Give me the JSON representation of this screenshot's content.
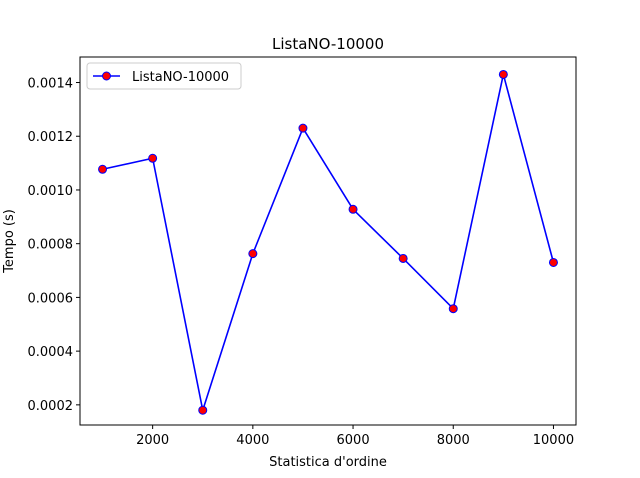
{
  "chart_data": {
    "type": "line",
    "title": "ListaNO-10000",
    "xlabel": "Statistica d'ordine",
    "ylabel": "Tempo (s)",
    "xlim": [
      550,
      10450
    ],
    "ylim": [
      0.000125,
      0.001495
    ],
    "xticks": [
      2000,
      4000,
      6000,
      8000,
      10000
    ],
    "xtick_labels": [
      "2000",
      "4000",
      "6000",
      "8000",
      "10000"
    ],
    "yticks": [
      0.0002,
      0.0004,
      0.0006,
      0.0008,
      0.001,
      0.0012,
      0.0014
    ],
    "ytick_labels": [
      "0.0002",
      "0.0004",
      "0.0006",
      "0.0008",
      "0.0010",
      "0.0012",
      "0.0014"
    ],
    "legend_position": "top-left",
    "grid": false,
    "series": [
      {
        "name": "ListaNO-10000",
        "line_color": "#0000ff",
        "marker_face": "#ff0000",
        "marker_edge": "#0000ff",
        "x": [
          1000,
          2000,
          3000,
          4000,
          5000,
          6000,
          7000,
          8000,
          9000,
          10000
        ],
        "y": [
          0.001077,
          0.001118,
          0.00018,
          0.000763,
          0.00123,
          0.000928,
          0.000745,
          0.000558,
          0.00143,
          0.00073
        ]
      }
    ]
  }
}
